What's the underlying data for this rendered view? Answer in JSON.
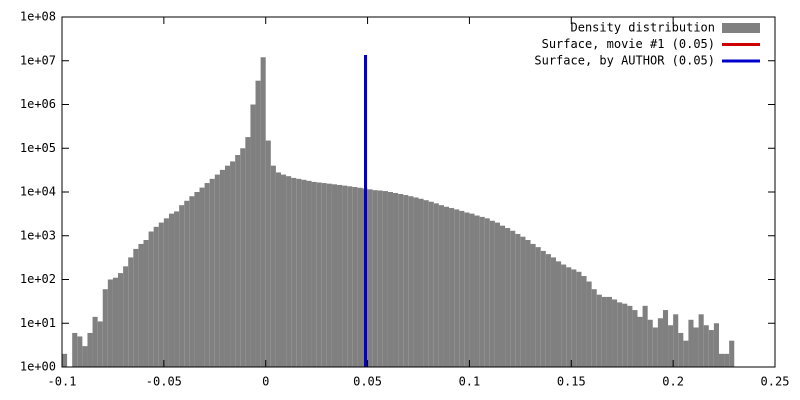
{
  "chart_data": {
    "type": "histogram",
    "log_y": true,
    "legend": "top-right",
    "bins": [
      -0.1,
      -0.0975,
      -0.095,
      -0.0925,
      -0.09,
      -0.0875,
      -0.085,
      -0.0825,
      -0.08,
      -0.0775,
      -0.075,
      -0.0725,
      -0.07,
      -0.0675,
      -0.065,
      -0.0625,
      -0.06,
      -0.0575,
      -0.055,
      -0.0525,
      -0.05,
      -0.0475,
      -0.045,
      -0.0425,
      -0.04,
      -0.0375,
      -0.035,
      -0.0325,
      -0.03,
      -0.0275,
      -0.025,
      -0.0225,
      -0.02,
      -0.0175,
      -0.015,
      -0.0125,
      -0.01,
      -0.0075,
      -0.005,
      -0.0025,
      0,
      0.0025,
      0.005,
      0.0075,
      0.01,
      0.0125,
      0.015,
      0.0175,
      0.02,
      0.0225,
      0.025,
      0.0275,
      0.03,
      0.0325,
      0.035,
      0.0375,
      0.04,
      0.0425,
      0.045,
      0.0475,
      0.05,
      0.0525,
      0.055,
      0.0575,
      0.06,
      0.0625,
      0.065,
      0.0675,
      0.07,
      0.0725,
      0.075,
      0.0775,
      0.08,
      0.0825,
      0.085,
      0.0875,
      0.09,
      0.0925,
      0.095,
      0.0975,
      0.1,
      0.1025,
      0.105,
      0.1075,
      0.11,
      0.1125,
      0.115,
      0.1175,
      0.12,
      0.1225,
      0.125,
      0.1275,
      0.13,
      0.1325,
      0.135,
      0.1375,
      0.14,
      0.1425,
      0.145,
      0.1475,
      0.15,
      0.1525,
      0.155,
      0.1575,
      0.16,
      0.1625,
      0.165,
      0.1675,
      0.17,
      0.1725,
      0.175,
      0.1775,
      0.18,
      0.1825,
      0.185,
      0.1875,
      0.19,
      0.1925,
      0.195,
      0.1975,
      0.2,
      0.2025,
      0.205,
      0.2075,
      0.21,
      0.2125,
      0.215,
      0.2175,
      0.22,
      0.2225,
      0.225,
      0.2275,
      0.23
    ],
    "series": [
      {
        "name": "Density distribution",
        "color": "#808080",
        "values": [
          2,
          1,
          6,
          5,
          3,
          6,
          14,
          11,
          60,
          100,
          110,
          140,
          200,
          320,
          500,
          650,
          800,
          1250,
          1600,
          2000,
          2500,
          3200,
          3600,
          5000,
          6300,
          8000,
          10000,
          12600,
          16000,
          20000,
          25000,
          32000,
          40000,
          50000,
          70000,
          100000,
          180000,
          1000000,
          3500000,
          12000000,
          150000,
          40000,
          28000,
          25000,
          23000,
          21000,
          20000,
          19000,
          18000,
          17000,
          16500,
          16000,
          15500,
          15000,
          14500,
          14000,
          13500,
          13000,
          12500,
          12000,
          11500,
          11000,
          10800,
          10500,
          10000,
          9500,
          9000,
          8500,
          8000,
          7500,
          7000,
          6500,
          6000,
          5500,
          5000,
          4600,
          4300,
          4000,
          3700,
          3400,
          3200,
          2900,
          2700,
          2500,
          2200,
          2000,
          1700,
          1500,
          1300,
          1100,
          950,
          800,
          650,
          550,
          450,
          380,
          320,
          260,
          220,
          190,
          170,
          150,
          120,
          90,
          60,
          45,
          40,
          40,
          35,
          30,
          28,
          25,
          20,
          14,
          25,
          12,
          8,
          13,
          20,
          9,
          16,
          6,
          4,
          12,
          8,
          16,
          9,
          7,
          10,
          2,
          2,
          4
        ]
      }
    ],
    "lines": [
      {
        "name": "Surface, movie #1 (0.05)",
        "color": "#cc0000",
        "x": [
          0.049,
          0.049
        ],
        "y": [
          1,
          13500000
        ]
      },
      {
        "name": "Surface, by AUTHOR (0.05)",
        "color": "#0000cc",
        "x": [
          0.049,
          0.049
        ],
        "y": [
          1,
          13500000
        ]
      }
    ],
    "xlim": [
      -0.1,
      0.25
    ],
    "ylim": [
      1,
      100000000
    ],
    "xticks": [
      -0.1,
      -0.05,
      0,
      0.05,
      0.1,
      0.15,
      0.2,
      0.25
    ],
    "yticks": [
      {
        "value": 1,
        "label": "1e+00"
      },
      {
        "value": 10,
        "label": "1e+01"
      },
      {
        "value": 100,
        "label": "1e+02"
      },
      {
        "value": 1000,
        "label": "1e+03"
      },
      {
        "value": 10000,
        "label": "1e+04"
      },
      {
        "value": 100000,
        "label": "1e+05"
      },
      {
        "value": 1000000,
        "label": "1e+06"
      },
      {
        "value": 10000000,
        "label": "1e+07"
      },
      {
        "value": 100000000,
        "label": "1e+08"
      }
    ]
  }
}
